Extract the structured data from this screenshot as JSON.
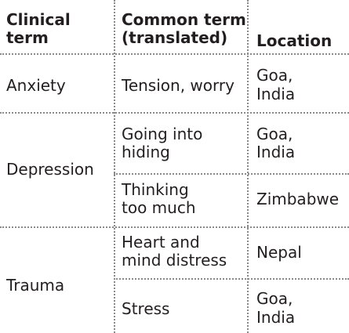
{
  "table": {
    "headers": {
      "clinical_line1": "Clinical",
      "clinical_line2": "term",
      "common_line1": "Common term",
      "common_line2": "(translated)",
      "location": "Location"
    },
    "groups": [
      {
        "clinical_term": "Anxiety",
        "rows": [
          {
            "common_line1": "Tension, worry",
            "location_line1": "Goa,",
            "location_line2": "India"
          }
        ]
      },
      {
        "clinical_term": "Depression",
        "rows": [
          {
            "common_line1": "Going into",
            "common_line2": "hiding",
            "location_line1": "Goa,",
            "location_line2": "India"
          },
          {
            "common_line1": "Thinking",
            "common_line2": "too much",
            "location_line1": "Zimbabwe"
          }
        ]
      },
      {
        "clinical_term": "Trauma",
        "rows": [
          {
            "common_line1": "Heart and",
            "common_line2": "mind distress",
            "location_line1": "Nepal"
          },
          {
            "common_line1": "Stress",
            "location_line1": "Goa,",
            "location_line2": "India"
          }
        ]
      }
    ]
  }
}
